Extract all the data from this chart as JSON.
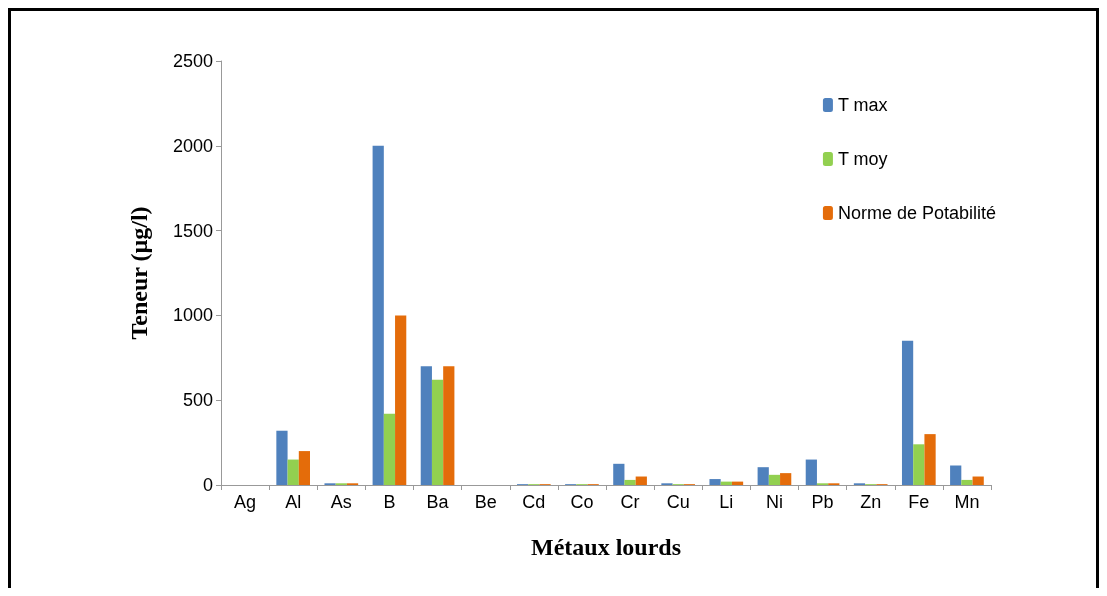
{
  "chart_data": {
    "type": "bar",
    "xlabel": "Métaux lourds",
    "ylabel": "Teneur (µg/l)",
    "categories": [
      "Ag",
      "Al",
      "As",
      "B",
      "Ba",
      "Be",
      "Cd",
      "Co",
      "Cr",
      "Cu",
      "Li",
      "Ni",
      "Pb",
      "Zn",
      "Fe",
      "Mn"
    ],
    "series": [
      {
        "name": "T max",
        "color": "#4f81bd",
        "values": [
          null,
          320,
          10,
          2000,
          700,
          null,
          5,
          5,
          125,
          10,
          35,
          105,
          150,
          10,
          850,
          115
        ]
      },
      {
        "name": "T moy",
        "color": "#92d050",
        "values": [
          null,
          150,
          10,
          420,
          620,
          null,
          5,
          5,
          30,
          5,
          20,
          60,
          10,
          5,
          240,
          30
        ]
      },
      {
        "name": "Norme de Potabilité",
        "color": "#e46c0a",
        "values": [
          null,
          200,
          10,
          1000,
          700,
          null,
          5,
          5,
          50,
          5,
          20,
          70,
          10,
          5,
          300,
          50
        ]
      }
    ],
    "ylim": [
      0,
      2500
    ],
    "yticks": [
      0,
      500,
      1000,
      1500,
      2000,
      2500
    ],
    "grid": false,
    "legend": "top right"
  }
}
